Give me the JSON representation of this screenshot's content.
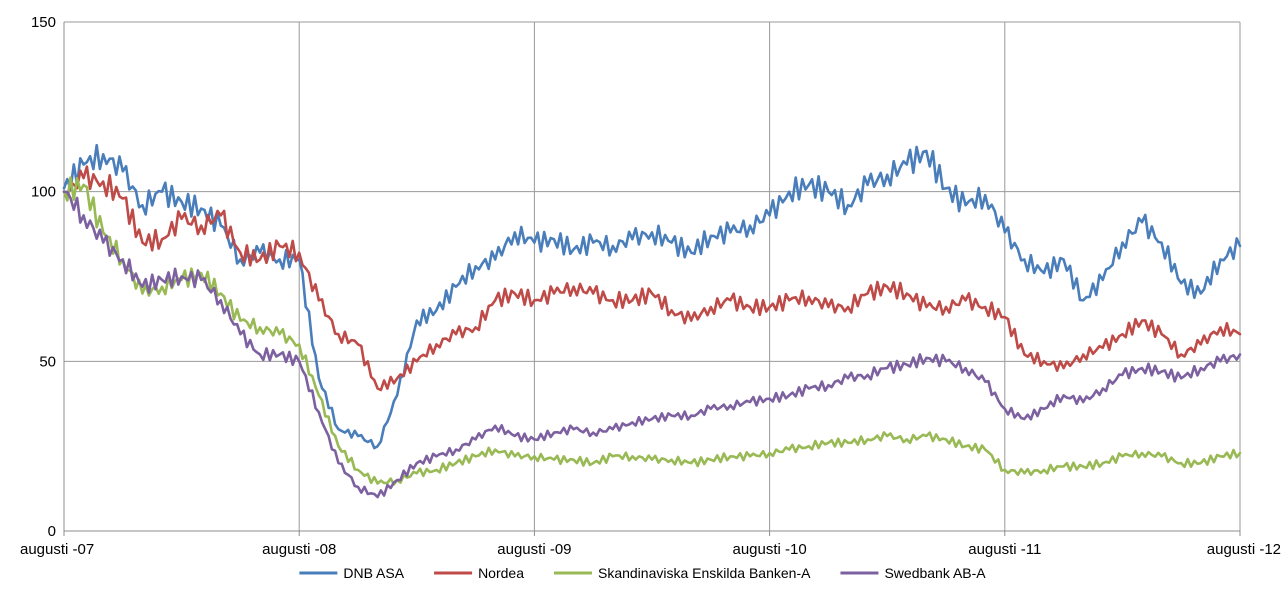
{
  "chart_data": {
    "type": "line",
    "title": "",
    "xlabel": "",
    "ylabel": "",
    "ylim": [
      0,
      150
    ],
    "yticks": [
      0,
      50,
      100,
      150
    ],
    "xlim": [
      0,
      60
    ],
    "xticks": [
      {
        "x": 0,
        "label": "augusti -07"
      },
      {
        "x": 12,
        "label": "augusti -08"
      },
      {
        "x": 24,
        "label": "augusti -09"
      },
      {
        "x": 36,
        "label": "augusti -10"
      },
      {
        "x": 48,
        "label": "augusti -11"
      },
      {
        "x": 60,
        "label": "augusti -12"
      }
    ],
    "grid": "vertical and horizontal",
    "legend_position": "bottom",
    "series": [
      {
        "name": "DNB ASA",
        "color": "#4a7ebb",
        "x": [
          0,
          1,
          2,
          3,
          4,
          5,
          6,
          7,
          8,
          9,
          10,
          11,
          12,
          13,
          14,
          15,
          16,
          17,
          18,
          19,
          20,
          21,
          22,
          23,
          24,
          25,
          26,
          27,
          28,
          29,
          30,
          31,
          32,
          33,
          34,
          35,
          36,
          37,
          38,
          39,
          40,
          41,
          42,
          43,
          44,
          45,
          46,
          47,
          48,
          49,
          50,
          51,
          52,
          53,
          54,
          55,
          56,
          57,
          58,
          59,
          60
        ],
        "values": [
          101,
          108,
          111,
          106,
          96,
          100,
          97,
          95,
          90,
          80,
          82,
          80,
          80,
          45,
          30,
          28,
          25,
          40,
          62,
          65,
          72,
          78,
          80,
          88,
          85,
          86,
          83,
          85,
          84,
          86,
          88,
          85,
          82,
          87,
          88,
          90,
          93,
          100,
          102,
          100,
          96,
          102,
          105,
          108,
          112,
          101,
          96,
          99,
          88,
          80,
          76,
          80,
          68,
          74,
          85,
          91,
          85,
          73,
          70,
          80,
          84
        ]
      },
      {
        "name": "Nordea",
        "color": "#be4b48",
        "x": [
          0,
          1,
          2,
          3,
          4,
          5,
          6,
          7,
          8,
          9,
          10,
          11,
          12,
          13,
          14,
          15,
          16,
          17,
          18,
          19,
          20,
          21,
          22,
          23,
          24,
          25,
          26,
          27,
          28,
          29,
          30,
          31,
          32,
          33,
          34,
          35,
          36,
          37,
          38,
          39,
          40,
          41,
          42,
          43,
          44,
          45,
          46,
          47,
          48,
          49,
          50,
          51,
          52,
          53,
          54,
          55,
          56,
          57,
          58,
          59,
          60
        ],
        "values": [
          100,
          104,
          103,
          98,
          85,
          86,
          92,
          90,
          93,
          82,
          80,
          84,
          82,
          68,
          58,
          55,
          42,
          45,
          50,
          55,
          58,
          60,
          68,
          70,
          68,
          70,
          72,
          70,
          68,
          68,
          70,
          65,
          62,
          66,
          68,
          66,
          66,
          68,
          69,
          66,
          66,
          70,
          72,
          70,
          66,
          66,
          68,
          66,
          63,
          52,
          50,
          48,
          52,
          54,
          58,
          62,
          58,
          52,
          55,
          60,
          58
        ]
      },
      {
        "name": "Skandinaviska Enskilda Banken-A",
        "color": "#98b954",
        "x": [
          0,
          1,
          2,
          3,
          4,
          5,
          6,
          7,
          8,
          9,
          10,
          11,
          12,
          13,
          14,
          15,
          16,
          17,
          18,
          19,
          20,
          21,
          22,
          23,
          24,
          25,
          26,
          27,
          28,
          29,
          30,
          31,
          32,
          33,
          34,
          35,
          36,
          37,
          38,
          39,
          40,
          41,
          42,
          43,
          44,
          45,
          46,
          47,
          48,
          49,
          50,
          51,
          52,
          53,
          54,
          55,
          56,
          57,
          58,
          59,
          60
        ],
        "values": [
          100,
          102,
          88,
          80,
          70,
          72,
          74,
          76,
          70,
          62,
          60,
          58,
          55,
          40,
          25,
          18,
          14,
          15,
          17,
          18,
          20,
          22,
          24,
          22,
          22,
          21,
          21,
          20,
          22,
          22,
          21,
          21,
          20,
          21,
          22,
          22,
          23,
          24,
          25,
          26,
          26,
          27,
          28,
          27,
          28,
          27,
          25,
          24,
          18,
          17,
          18,
          19,
          19,
          20,
          22,
          23,
          22,
          20,
          20,
          22,
          23
        ]
      },
      {
        "name": "Swedbank AB-A",
        "color": "#7d60a0",
        "x": [
          0,
          1,
          2,
          3,
          4,
          5,
          6,
          7,
          8,
          9,
          10,
          11,
          12,
          13,
          14,
          15,
          16,
          17,
          18,
          19,
          20,
          21,
          22,
          23,
          24,
          25,
          26,
          27,
          28,
          29,
          30,
          31,
          32,
          33,
          34,
          35,
          36,
          37,
          38,
          39,
          40,
          41,
          42,
          43,
          44,
          45,
          46,
          47,
          48,
          49,
          50,
          51,
          52,
          53,
          54,
          55,
          56,
          57,
          58,
          59,
          60
        ],
        "values": [
          100,
          93,
          85,
          80,
          72,
          74,
          75,
          74,
          68,
          58,
          52,
          52,
          50,
          35,
          20,
          13,
          10,
          15,
          20,
          22,
          24,
          27,
          31,
          28,
          27,
          29,
          30,
          29,
          30,
          32,
          33,
          34,
          34,
          36,
          37,
          38,
          39,
          40,
          42,
          43,
          45,
          46,
          48,
          49,
          51,
          50,
          48,
          44,
          36,
          33,
          36,
          40,
          38,
          42,
          46,
          48,
          47,
          45,
          48,
          50,
          52
        ]
      }
    ]
  }
}
